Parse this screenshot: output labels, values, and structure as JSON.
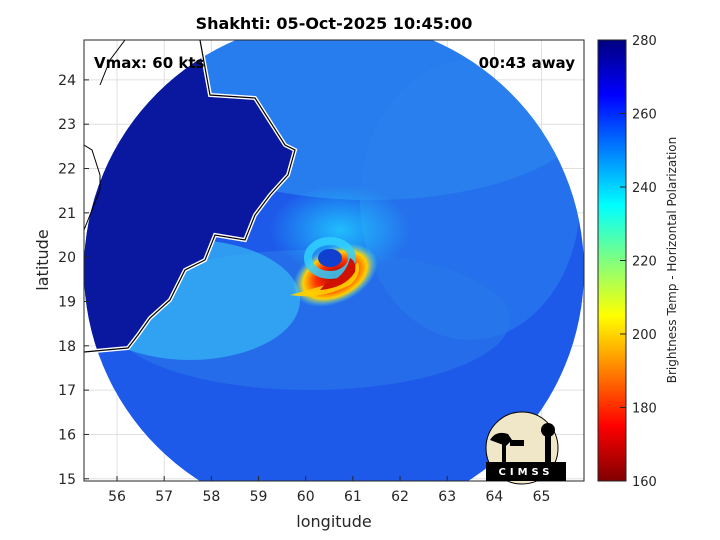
{
  "title": "Shakhti: 05-Oct-2025 10:45:00",
  "vmax_text": "Vmax: 60 kts",
  "away_text": "00:43 away",
  "xlabel": "longitude",
  "ylabel": "latitude",
  "colorbar_label": "Brightness Temp - Horizontal Polarization",
  "logo_text": "CIMSS",
  "axes": {
    "lon_range": [
      55.3,
      65.9
    ],
    "lat_range": [
      14.95,
      24.9
    ],
    "lon_ticks": [
      "56",
      "57",
      "58",
      "59",
      "60",
      "61",
      "62",
      "63",
      "64",
      "65"
    ],
    "lat_ticks": [
      "15",
      "16",
      "17",
      "18",
      "19",
      "20",
      "21",
      "22",
      "23",
      "24"
    ]
  },
  "colorbar": {
    "range": [
      160,
      280
    ],
    "ticks": [
      "160",
      "180",
      "200",
      "220",
      "240",
      "260",
      "280"
    ],
    "colors": [
      "#800000",
      "#ff0000",
      "#ff8000",
      "#ffff00",
      "#80ff80",
      "#00ffff",
      "#0080ff",
      "#0000ff",
      "#000080"
    ]
  },
  "chart_data": {
    "type": "heatmap",
    "title": "Shakhti: 05-Oct-2025 10:45:00",
    "xlabel": "longitude",
    "ylabel": "latitude",
    "xlim": [
      55.3,
      65.9
    ],
    "ylim": [
      14.95,
      24.9
    ],
    "colorbar": {
      "label": "Brightness Temp - Horizontal Polarization",
      "min": 160,
      "max": 280
    },
    "storm_center": {
      "lon": 60.6,
      "lat": 19.8
    },
    "annotations": [
      "Vmax: 60 kts",
      "00:43 away"
    ]
  }
}
